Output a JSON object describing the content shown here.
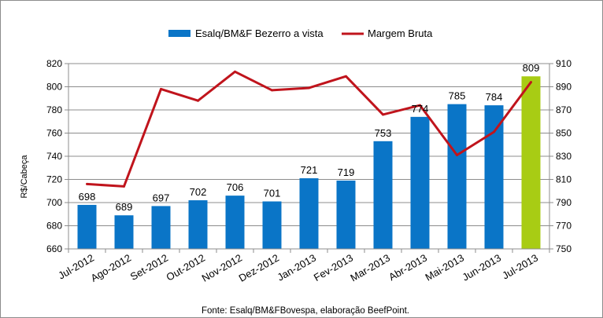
{
  "chart_data": {
    "type": "bar",
    "categories": [
      "Jul-2012",
      "Ago-2012",
      "Set-2012",
      "Out-2012",
      "Nov-2012",
      "Dez-2012",
      "Jan-2013",
      "Fev-2013",
      "Mar-2013",
      "Abr-2013",
      "Mai-2013",
      "Jun-2013",
      "Jul-2013"
    ],
    "series": [
      {
        "name": "Esalq/BM&F Bezerro a vista",
        "type": "bar",
        "axis": "left",
        "color": "#0a75c7",
        "last_color": "#a8cc14",
        "values": [
          698,
          689,
          697,
          702,
          706,
          701,
          721,
          719,
          753,
          774,
          785,
          784,
          809
        ],
        "data_labels": [
          "698",
          "689",
          "697",
          "702",
          "706",
          "701",
          "721",
          "719",
          "753",
          "774",
          "785",
          "784",
          "809"
        ]
      },
      {
        "name": "Margem Bruta",
        "type": "line",
        "axis": "right",
        "color": "#c0141c",
        "values": [
          806,
          804,
          888,
          878,
          903,
          887,
          889,
          899,
          866,
          874,
          831,
          851,
          894
        ]
      }
    ],
    "ylabel": "R$/Cabeça",
    "ylim": [
      660,
      820
    ],
    "yticks": [
      "660",
      "680",
      "700",
      "720",
      "740",
      "760",
      "780",
      "800",
      "820"
    ],
    "y2lim": [
      750,
      910
    ],
    "y2ticks": [
      "750",
      "770",
      "790",
      "810",
      "830",
      "850",
      "870",
      "890",
      "910"
    ],
    "legend_position": "top",
    "grid": true
  },
  "source_note": "Fonte: Esalq/BM&FBovespa, elaboração BeefPoint."
}
